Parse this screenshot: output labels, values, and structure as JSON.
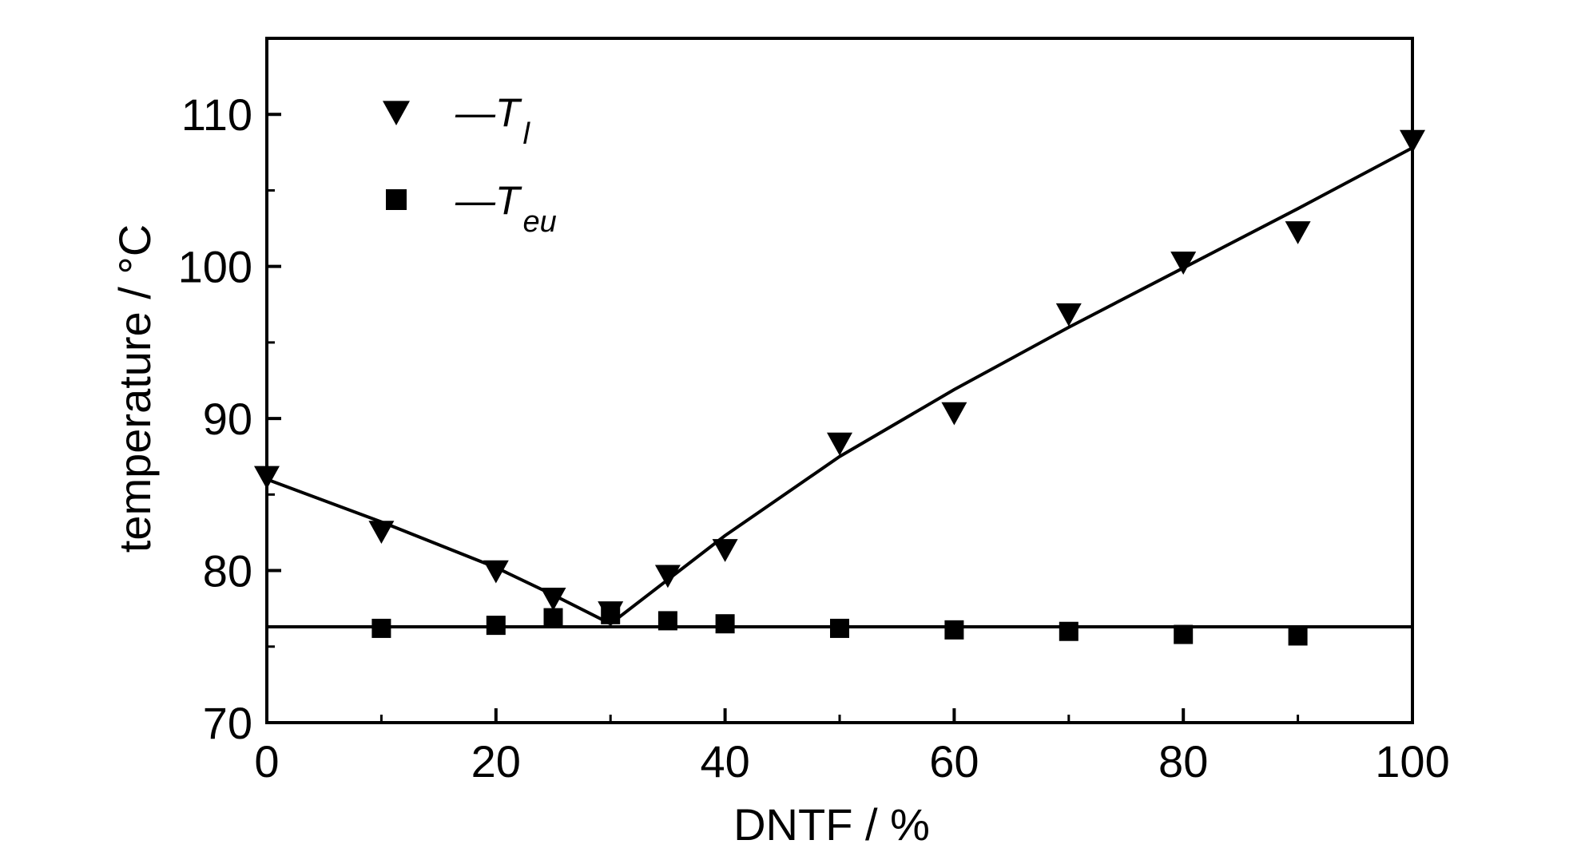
{
  "chart_data": {
    "type": "scatter",
    "title": "",
    "xlabel": "DNTF / %",
    "ylabel": "temperature / °C",
    "xlim": [
      0,
      100
    ],
    "ylim": [
      70,
      115
    ],
    "xticks": [
      0,
      20,
      40,
      60,
      80,
      100
    ],
    "yticks": [
      70,
      80,
      90,
      100,
      110
    ],
    "grid": false,
    "legend_position": "top-left",
    "series": [
      {
        "name": "—T l",
        "legend_main": "—T",
        "legend_sub": "l",
        "marker": "triangle-down",
        "color": "#000000",
        "x": [
          0,
          10,
          20,
          25,
          30,
          35,
          40,
          50,
          60,
          70,
          80,
          90,
          100
        ],
        "y": [
          86.2,
          82.6,
          80.0,
          78.2,
          77.3,
          79.7,
          81.4,
          88.4,
          90.4,
          96.9,
          100.3,
          102.3,
          108.3
        ],
        "fit_x": [
          0,
          10,
          20,
          25,
          30,
          40,
          50,
          60,
          70,
          80,
          90,
          100
        ],
        "fit_y": [
          86.0,
          83.2,
          80.2,
          78.4,
          76.5,
          82.3,
          87.5,
          91.9,
          96.0,
          99.9,
          103.8,
          107.8
        ]
      },
      {
        "name": "—T eu",
        "legend_main": "—T",
        "legend_sub": "eu",
        "marker": "square",
        "color": "#000000",
        "x": [
          10,
          20,
          25,
          30,
          35,
          40,
          50,
          60,
          70,
          80,
          90
        ],
        "y": [
          76.2,
          76.4,
          76.9,
          77.1,
          76.7,
          76.5,
          76.2,
          76.1,
          76.0,
          75.8,
          75.7
        ],
        "fit_x": [
          0,
          100
        ],
        "fit_y": [
          76.3,
          76.3
        ]
      }
    ]
  }
}
